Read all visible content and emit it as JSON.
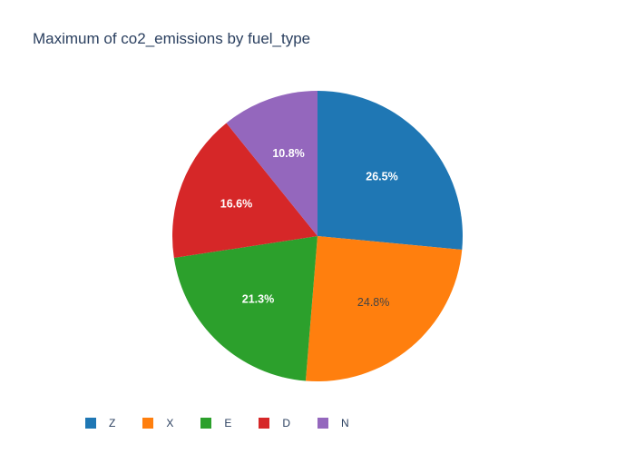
{
  "chart_data": {
    "type": "pie",
    "title": "Maximum of co2_emissions by fuel_type",
    "categories": [
      "Z",
      "X",
      "E",
      "D",
      "N"
    ],
    "percent_labels": [
      "26.5%",
      "24.8%",
      "21.3%",
      "16.6%",
      "10.8%"
    ],
    "values": [
      26.5,
      24.8,
      21.3,
      16.6,
      10.8
    ],
    "colors": [
      "#1f77b4",
      "#ff7f0e",
      "#2ca02c",
      "#d62728",
      "#9467bd"
    ],
    "label_colors": [
      "#ffffff",
      "#444444",
      "#ffffff",
      "#ffffff",
      "#ffffff"
    ],
    "direction": "clockwise",
    "legend_position": "bottom-left, horizontal"
  }
}
